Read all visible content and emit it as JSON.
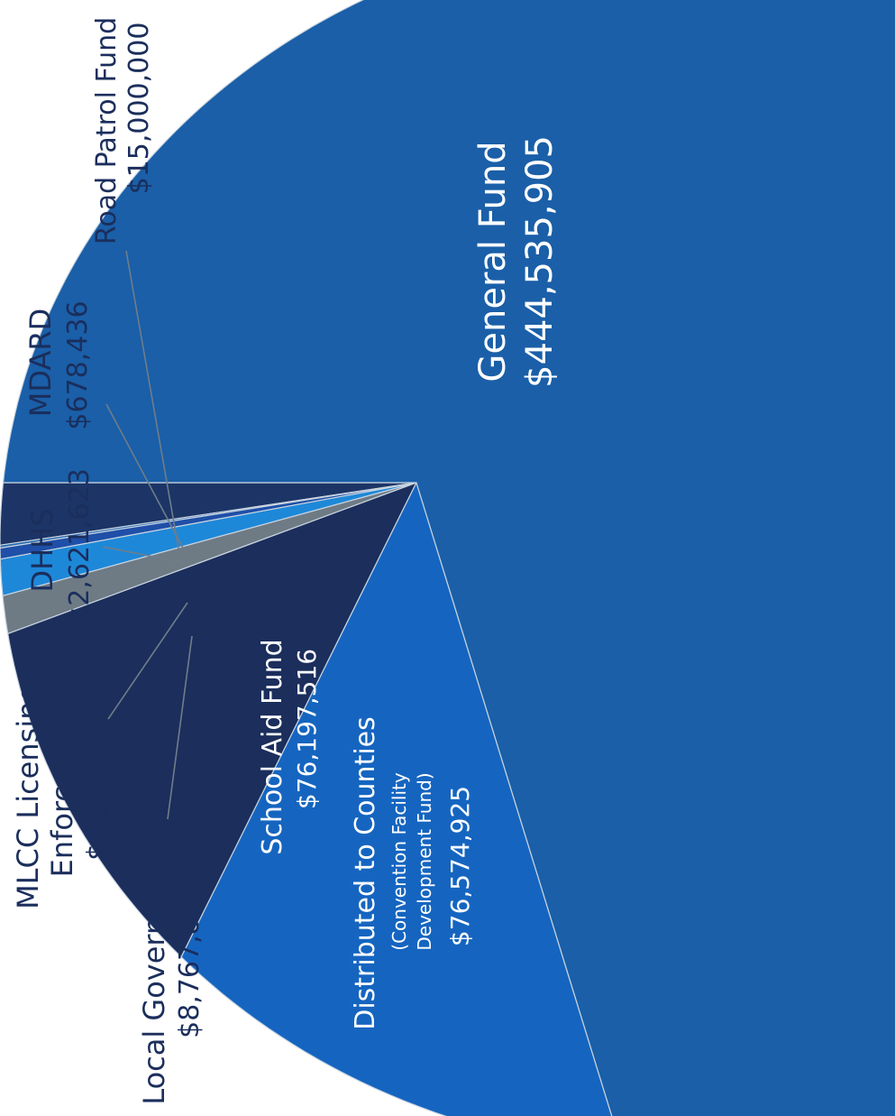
{
  "chart_data": {
    "type": "pie",
    "title": "",
    "series": [
      {
        "labels": [
          "General Fund",
          "Distributed to Counties (Convention Facility Development Fund)",
          "School Aid Fund",
          "Local Governments",
          "MLCC Licensing & Enforcement",
          "DHHS",
          "MDARD",
          "Road Patrol Fund"
        ],
        "values": [
          444535905,
          76574925,
          76197516,
          8767896,
          8573656,
          2621623,
          678436,
          15000000
        ],
        "colors": [
          "#1a5fa8",
          "#1565c0",
          "#1b2e5c",
          "#6e7b85",
          "#1e88d8",
          "#1f4fa8",
          "#2a6ab0",
          "#1c3566"
        ]
      }
    ],
    "label_text": {
      "general_name": "General Fund",
      "general_value": "$444,535,905",
      "county_name": "Distributed to Counties",
      "county_sub1": "(Convention Facility",
      "county_sub2": "Development Fund)",
      "county_value": "$76,574,925",
      "school_name": "School Aid Fund",
      "school_value": "$76,197,516",
      "local_name": "Local Governments",
      "local_value": "$8,767,896",
      "mlcc_name1": "MLCC Licensing &",
      "mlcc_name2": "Enforcement",
      "mlcc_value": "$8,573,656",
      "dhhs_name": "DHHS",
      "dhhs_value": "$2,621,623",
      "mdard_name": "MDARD",
      "mdard_value": "$678,436",
      "road_name": "Road Patrol Fund",
      "road_value": "$15,000,000"
    },
    "colors": {
      "side": "#1b2b4a",
      "text_dark": "#1b2e5c",
      "text_light": "#ffffff"
    }
  }
}
